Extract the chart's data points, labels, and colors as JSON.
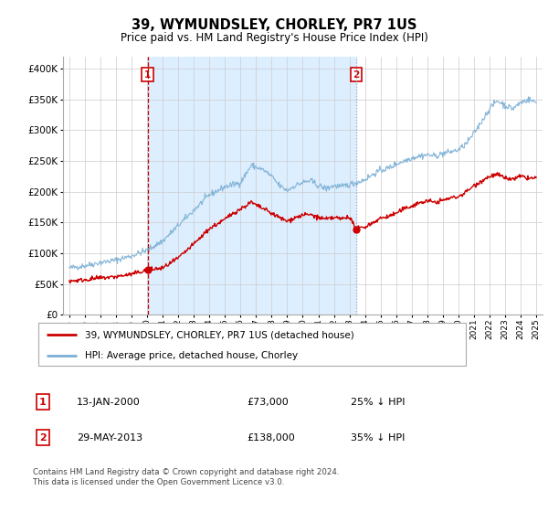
{
  "title": "39, WYMUNDSLEY, CHORLEY, PR7 1US",
  "subtitle": "Price paid vs. HM Land Registry's House Price Index (HPI)",
  "red_label": "39, WYMUNDSLEY, CHORLEY, PR7 1US (detached house)",
  "blue_label": "HPI: Average price, detached house, Chorley",
  "footer": "Contains HM Land Registry data © Crown copyright and database right 2024.\nThis data is licensed under the Open Government Licence v3.0.",
  "marker1_date": "13-JAN-2000",
  "marker1_price": 73000,
  "marker1_label": "25% ↓ HPI",
  "marker2_date": "29-MAY-2013",
  "marker2_price": 138000,
  "marker2_label": "35% ↓ HPI",
  "ylim": [
    0,
    420000
  ],
  "yticks": [
    0,
    50000,
    100000,
    150000,
    200000,
    250000,
    300000,
    350000,
    400000
  ],
  "background_color": "#ffffff",
  "shade_color": "#ddeeff",
  "grid_color": "#cccccc",
  "red_color": "#cc0000",
  "blue_color": "#7aafd4",
  "marker1_x": 2000.04,
  "marker2_x": 2013.42,
  "xmin": 1994.6,
  "xmax": 2025.4
}
